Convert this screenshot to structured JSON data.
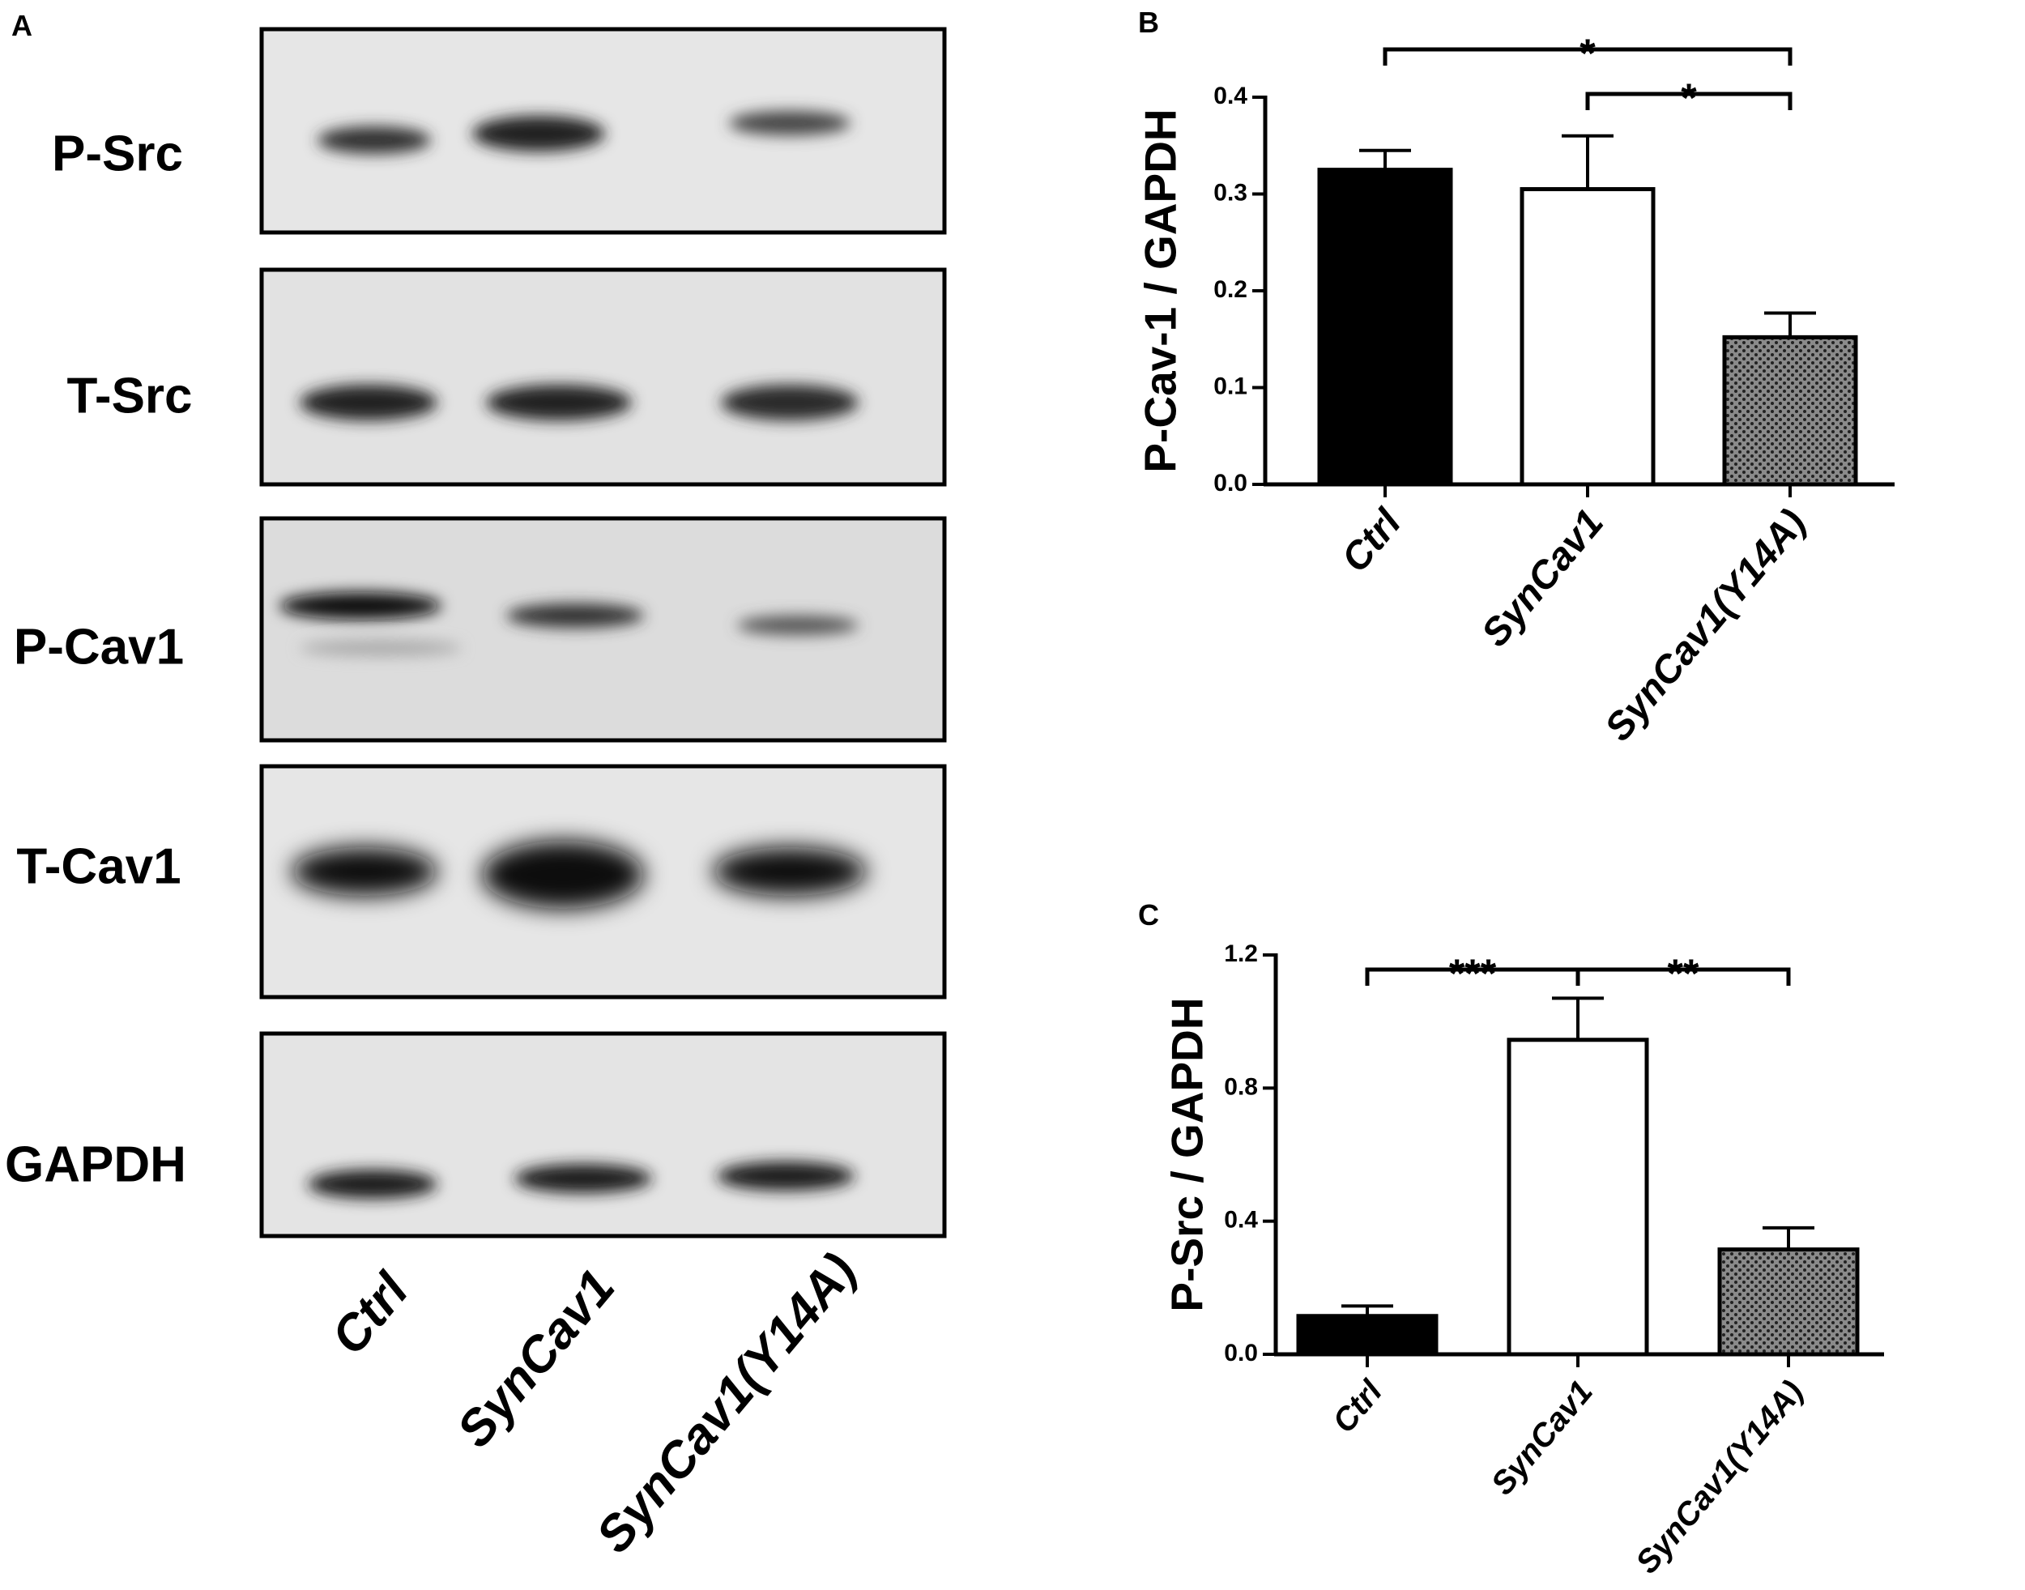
{
  "panel_labels": [
    "A",
    "B",
    "C"
  ],
  "blot": {
    "rows": [
      "P-Src",
      "T-Src",
      "P-Cav1",
      "T-Cav1",
      "GAPDH"
    ],
    "lanes": [
      "Ctrl",
      "SynCav1",
      "SynCav1(Y14A)"
    ]
  },
  "chart_data": [
    {
      "type": "bar",
      "y_label": "P-Cav-1 / GAPDH",
      "categories": [
        "Ctrl",
        "SynCav1",
        "SynCav1(Y14A)"
      ],
      "values": [
        0.325,
        0.305,
        0.152
      ],
      "errors": [
        0.02,
        0.055,
        0.025
      ],
      "colors": [
        "#000000",
        "#ffffff",
        "#7a7a7a"
      ],
      "fills": [
        "solid",
        "solid",
        "dotted"
      ],
      "ylim": [
        0,
        0.4
      ],
      "yticks": [
        {
          "value": 0,
          "label": "0.0"
        },
        0.1,
        0.2,
        0.3,
        0.4
      ],
      "comparisons": [
        {
          "label": "*",
          "groups": [
            0,
            2
          ]
        },
        {
          "label": "*",
          "groups": [
            1,
            2
          ]
        }
      ]
    },
    {
      "type": "bar",
      "y_label": "P-Src / GAPDH",
      "categories": [
        "Ctrl",
        "SynCav1",
        "SynCav1(Y14A)"
      ],
      "values": [
        0.115,
        0.945,
        0.315
      ],
      "errors": [
        0.03,
        0.125,
        0.065
      ],
      "colors": [
        "#000000",
        "#ffffff",
        "#7a7a7a"
      ],
      "fills": [
        "solid",
        "solid",
        "dotted"
      ],
      "ylim": [
        0,
        1.2
      ],
      "yticks": [
        {
          "value": 0,
          "label": "0.0"
        },
        0.4,
        0.8,
        1.2
      ],
      "comparisons": [
        {
          "label": "***",
          "groups": [
            0,
            1
          ]
        },
        {
          "label": "**",
          "groups": [
            1,
            2
          ]
        }
      ]
    }
  ]
}
